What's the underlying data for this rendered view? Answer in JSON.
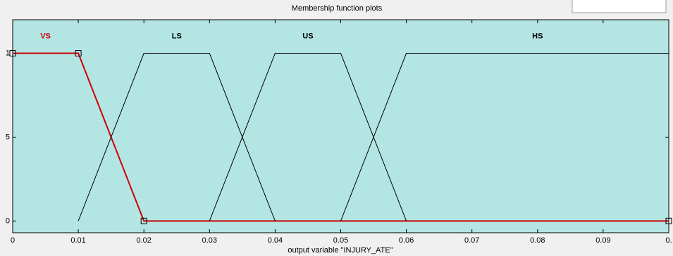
{
  "chart_data": {
    "type": "line",
    "title": "Membership function plots",
    "xlabel": "output variable \"INJURY_ATE\"",
    "xlim": [
      0,
      0.1
    ],
    "xticks": [
      0,
      0.01,
      0.02,
      0.03,
      0.04,
      0.05,
      0.06,
      0.07,
      0.08,
      0.09,
      {
        "value": 0.1,
        "label": "0."
      }
    ],
    "ylim": [
      -0.07,
      1.2
    ],
    "yticks": [
      0,
      {
        "value": 0.5,
        "label": "5"
      },
      1
    ],
    "grid": false,
    "series": [
      {
        "name": "VS",
        "color": "#cc0000",
        "selected": true,
        "x": [
          0,
          0.01,
          0.02,
          0.1
        ],
        "values": [
          1,
          1,
          0,
          0
        ]
      },
      {
        "name": "LS",
        "color": "#000000",
        "x": [
          0.01,
          0.02,
          0.03,
          0.04
        ],
        "values": [
          0,
          1,
          1,
          0
        ]
      },
      {
        "name": "US",
        "color": "#000000",
        "x": [
          0.03,
          0.04,
          0.05,
          0.06
        ],
        "values": [
          0,
          1,
          1,
          0
        ]
      },
      {
        "name": "HS",
        "color": "#000000",
        "x": [
          0.05,
          0.06,
          0.1
        ],
        "values": [
          0,
          1,
          1
        ]
      }
    ]
  }
}
